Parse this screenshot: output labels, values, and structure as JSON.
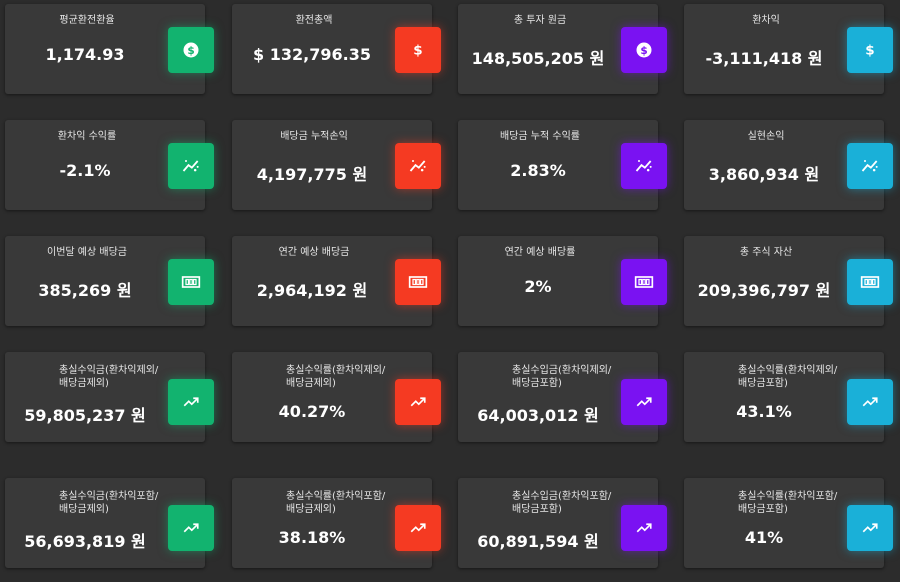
{
  "cards": [
    {
      "label": "평균환전환율",
      "value": "1,174.93"
    },
    {
      "label": "환전총액",
      "value": "$ 132,796.35"
    },
    {
      "label": "총 투자 원금",
      "value": "148,505,205 원"
    },
    {
      "label": "환차익",
      "value": "-3,111,418 원"
    },
    {
      "label": "환차익 수익률",
      "value": "-2.1%"
    },
    {
      "label": "배당금 누적손익",
      "value": "4,197,775 원"
    },
    {
      "label": "배당금 누적 수익률",
      "value": "2.83%"
    },
    {
      "label": "실현손익",
      "value": "3,860,934 원"
    },
    {
      "label": "이번달 예상 배당금",
      "value": "385,269 원"
    },
    {
      "label": "연간 예상 배당금",
      "value": "2,964,192 원"
    },
    {
      "label": "연간 예상 배당률",
      "value": "2%"
    },
    {
      "label": "총 주식 자산",
      "value": "209,396,797 원"
    },
    {
      "label": "총실수익금(환차익제외/배당금제외)",
      "value": "59,805,237 원"
    },
    {
      "label": "총실수익률(환차익제외/배당금제외)",
      "value": "40.27%"
    },
    {
      "label": "총실수입금(환차익제외/배당금포함)",
      "value": "64,003,012 원"
    },
    {
      "label": "총실수익률(환차익제외/배당금포함)",
      "value": "43.1%"
    },
    {
      "label": "총실수익금(환차익포함/배당금제외)",
      "value": "56,693,819 원"
    },
    {
      "label": "총실수익률(환차익포함/배당금제외)",
      "value": "38.18%"
    },
    {
      "label": "총실수입금(환차익포함/배당금포함)",
      "value": "60,891,594 원"
    },
    {
      "label": "총실수익률(환차익포함/배당금포함)",
      "value": "41%"
    }
  ],
  "icons": [
    "dollar-circle-icon",
    "dollar-icon",
    "sparkle-trend-icon",
    "cash-icon",
    "trending-up-icon"
  ],
  "colors": {
    "green": "#12b36f",
    "red": "#f53a22",
    "purple": "#7a12f2",
    "cyan": "#1ab0d8",
    "background": "#2c2c2c",
    "card": "#393939"
  }
}
